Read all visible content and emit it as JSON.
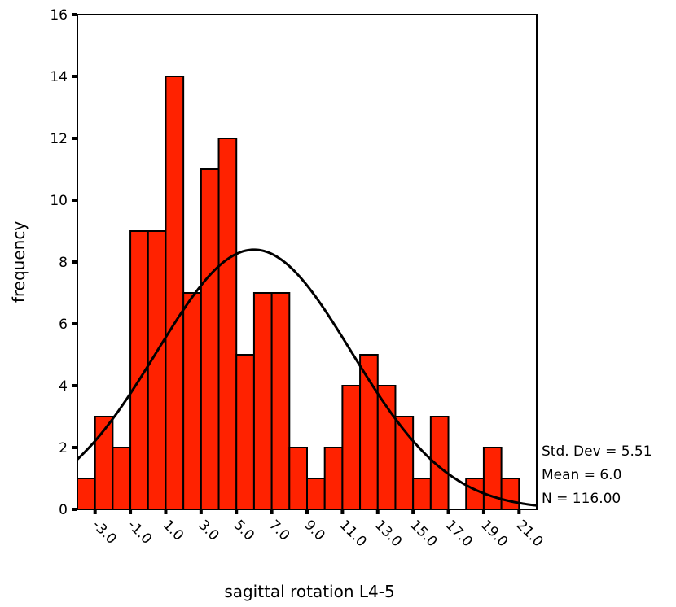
{
  "chart_data": {
    "type": "bar",
    "subtype": "histogram",
    "xlabel": "sagittal rotation L4-5",
    "ylabel": "frequency",
    "ylim": [
      0,
      16
    ],
    "xlim": [
      -4.0,
      22.0
    ],
    "yticks": [
      0,
      2,
      4,
      6,
      8,
      10,
      12,
      14,
      16
    ],
    "xticks": [
      -3.0,
      -1.0,
      1.0,
      3.0,
      5.0,
      7.0,
      9.0,
      11.0,
      13.0,
      15.0,
      17.0,
      19.0,
      21.0
    ],
    "xtick_labels": [
      "-3.0",
      "-1.0",
      "1.0",
      "3.0",
      "5.0",
      "7.0",
      "9.0",
      "11.0",
      "13.0",
      "15.0",
      "17.0",
      "19.0",
      "21.0"
    ],
    "bin_width": 1.0,
    "bin_centers": [
      -3.5,
      -2.5,
      -1.5,
      -0.5,
      0.5,
      1.5,
      2.5,
      3.5,
      4.5,
      5.5,
      6.5,
      7.5,
      8.5,
      9.5,
      10.5,
      11.5,
      12.5,
      13.5,
      14.5,
      15.5,
      16.5,
      17.5,
      18.5,
      19.5,
      20.5,
      21.5
    ],
    "values": [
      1,
      3,
      2,
      9,
      9,
      14,
      7,
      11,
      12,
      5,
      7,
      7,
      2,
      1,
      2,
      4,
      5,
      4,
      3,
      1,
      3,
      0,
      1,
      2,
      1,
      0
    ],
    "bar_color": "#ff2200",
    "normal_curve": {
      "mean": 6.0,
      "std": 5.51,
      "n": 116,
      "bin_width": 1.0
    },
    "legend": {
      "std_dev": "Std. Dev = 5.51",
      "mean": "Mean = 6.0",
      "n": "N = 116.00"
    }
  }
}
